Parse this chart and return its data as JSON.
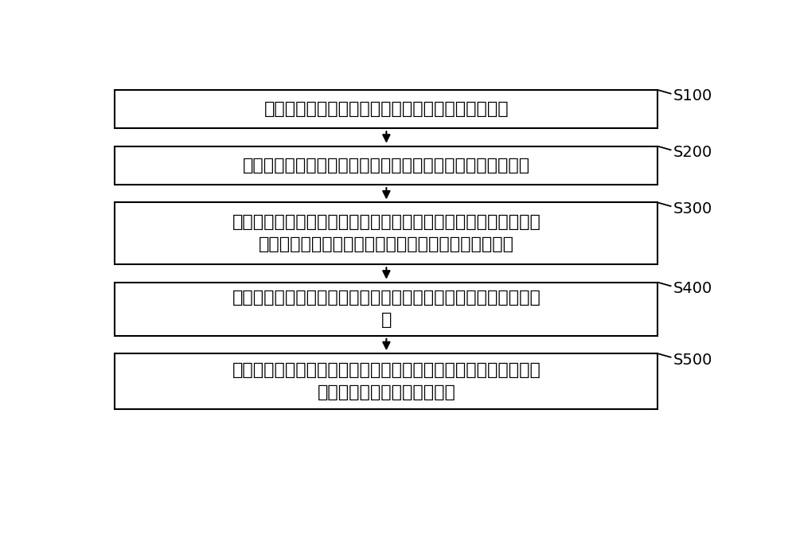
{
  "background_color": "#ffffff",
  "box_texts": [
    "获取高压断路器型式试验所得数据中的机械特征数据",
    "获取各离散时间点对应的标准参考机械特征值以及失效判断值",
    "计算一离散时间点对应的各次机械特性试验的机械特征值与标准参\n考机械特征值的差值的绝对值，得到对应的绝对值数列",
    "对所述绝对值数列进行曲线拟合，得到该离散时间点对应的衰退曲\n线",
    "根据各离散时间点对应的标准参考机械特征值、失效判断值以及衰\n退曲线得到机械特征衰退比例"
  ],
  "step_labels": [
    "S100",
    "S200",
    "S300",
    "S400",
    "S500"
  ],
  "box_color": "#ffffff",
  "box_edge_color": "#000000",
  "arrow_color": "#000000",
  "text_color": "#000000",
  "step_color": "#000000",
  "font_size": 16,
  "step_font_size": 14,
  "fig_width": 10.0,
  "fig_height": 6.96,
  "dpi": 100
}
